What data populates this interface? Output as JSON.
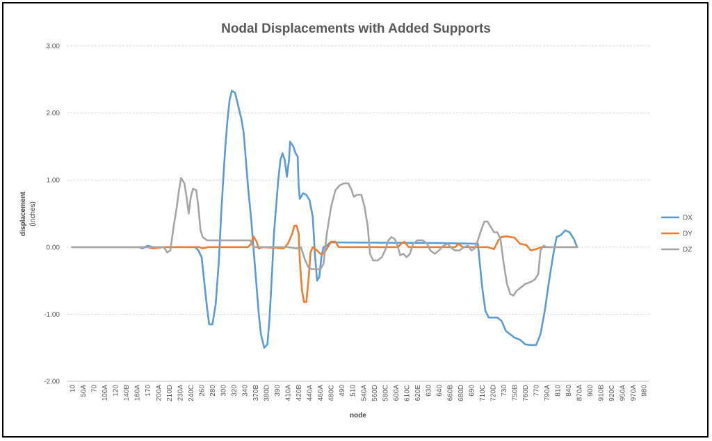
{
  "chart_data": {
    "type": "line",
    "title": "Nodal Displacements with Added Supports",
    "xlabel": "node",
    "ylabel": "displacement",
    "ylabel_unit": "(inches)",
    "ylim": [
      -2.0,
      3.0
    ],
    "yticks": [
      "3.00",
      "2.00",
      "1.00",
      "0.00",
      "-1.00",
      "-2.00"
    ],
    "grid": true,
    "legend_position": "right",
    "categories": [
      "10",
      "50A",
      "70",
      "100A",
      "120",
      "140B",
      "160A",
      "170",
      "200A",
      "210D",
      "230A",
      "240C",
      "260",
      "280",
      "300",
      "320",
      "340",
      "370B",
      "380D",
      "390",
      "410A",
      "420B",
      "440A",
      "460A",
      "480C",
      "490",
      "510",
      "540A",
      "560D",
      "580C",
      "600A",
      "610C",
      "620E",
      "630",
      "640",
      "660B",
      "680D",
      "690",
      "710C",
      "720D",
      "730",
      "750B",
      "760D",
      "770",
      "790A",
      "810",
      "840",
      "870A",
      "900",
      "910B",
      "920C",
      "950A",
      "970A",
      "980"
    ],
    "series": [
      {
        "name": "DX",
        "color": "#5B9BD5",
        "points": [
          [
            0,
            0
          ],
          [
            6.2,
            0
          ],
          [
            6.5,
            -0.02
          ],
          [
            7,
            0.02
          ],
          [
            7.5,
            0
          ],
          [
            11.4,
            0
          ],
          [
            11.7,
            -0.05
          ],
          [
            12,
            -0.15
          ],
          [
            12.3,
            -0.6
          ],
          [
            12.5,
            -0.9
          ],
          [
            12.7,
            -1.15
          ],
          [
            13,
            -1.15
          ],
          [
            13.3,
            -0.85
          ],
          [
            13.6,
            -0.2
          ],
          [
            13.8,
            0.45
          ],
          [
            14,
            1.0
          ],
          [
            14.2,
            1.5
          ],
          [
            14.4,
            1.9
          ],
          [
            14.6,
            2.2
          ],
          [
            14.8,
            2.33
          ],
          [
            15.1,
            2.3
          ],
          [
            15.4,
            2.1
          ],
          [
            15.7,
            1.9
          ],
          [
            15.9,
            1.7
          ],
          [
            16.1,
            1.3
          ],
          [
            16.3,
            0.9
          ],
          [
            16.6,
            0.4
          ],
          [
            16.9,
            -0.2
          ],
          [
            17.1,
            -0.6
          ],
          [
            17.3,
            -1.0
          ],
          [
            17.5,
            -1.3
          ],
          [
            17.8,
            -1.5
          ],
          [
            18.1,
            -1.45
          ],
          [
            18.3,
            -1.05
          ],
          [
            18.5,
            -0.45
          ],
          [
            18.7,
            0.2
          ],
          [
            18.9,
            0.6
          ],
          [
            19.1,
            1.0
          ],
          [
            19.3,
            1.3
          ],
          [
            19.5,
            1.4
          ],
          [
            19.7,
            1.3
          ],
          [
            19.9,
            1.05
          ],
          [
            20.1,
            1.3
          ],
          [
            20.2,
            1.57
          ],
          [
            20.5,
            1.5
          ],
          [
            20.7,
            1.4
          ],
          [
            20.9,
            1.35
          ],
          [
            21,
            0.9
          ],
          [
            21.1,
            0.72
          ],
          [
            21.4,
            0.8
          ],
          [
            21.7,
            0.78
          ],
          [
            22,
            0.7
          ],
          [
            22.3,
            0.45
          ],
          [
            22.5,
            -0.1
          ],
          [
            22.7,
            -0.5
          ],
          [
            22.9,
            -0.45
          ],
          [
            23.1,
            -0.15
          ],
          [
            23.3,
            0
          ],
          [
            23.6,
            0.02
          ],
          [
            23.9,
            0.07
          ],
          [
            34.5,
            0.06
          ],
          [
            37.6,
            0.05
          ],
          [
            38.0,
            -0.6
          ],
          [
            38.3,
            -0.95
          ],
          [
            38.6,
            -1.05
          ],
          [
            39.4,
            -1.05
          ],
          [
            39.8,
            -1.1
          ],
          [
            40.2,
            -1.25
          ],
          [
            40.6,
            -1.3
          ],
          [
            41.0,
            -1.35
          ],
          [
            41.5,
            -1.38
          ],
          [
            42.0,
            -1.45
          ],
          [
            42.5,
            -1.46
          ],
          [
            43.0,
            -1.46
          ],
          [
            43.4,
            -1.3
          ],
          [
            43.8,
            -0.95
          ],
          [
            44.2,
            -0.5
          ],
          [
            44.6,
            -0.1
          ],
          [
            44.9,
            0.15
          ],
          [
            45.3,
            0.18
          ],
          [
            45.7,
            0.25
          ],
          [
            46.1,
            0.22
          ],
          [
            46.5,
            0.12
          ],
          [
            46.8,
            0.0
          ]
        ]
      },
      {
        "name": "DY",
        "color": "#ED7D31",
        "points": [
          [
            0,
            0
          ],
          [
            7,
            0
          ],
          [
            7.5,
            -0.02
          ],
          [
            8.5,
            0
          ],
          [
            11.8,
            0
          ],
          [
            12.1,
            -0.02
          ],
          [
            12.6,
            0
          ],
          [
            16.3,
            0
          ],
          [
            16.6,
            0.05
          ],
          [
            16.8,
            0.16
          ],
          [
            17.1,
            0.08
          ],
          [
            17.3,
            -0.02
          ],
          [
            17.7,
            0
          ],
          [
            19.6,
            -0.02
          ],
          [
            20,
            0.05
          ],
          [
            20.4,
            0.2
          ],
          [
            20.6,
            0.32
          ],
          [
            20.8,
            0.32
          ],
          [
            21,
            0.2
          ],
          [
            21.1,
            -0.2
          ],
          [
            21.3,
            -0.65
          ],
          [
            21.5,
            -0.82
          ],
          [
            21.7,
            -0.82
          ],
          [
            21.9,
            -0.5
          ],
          [
            22.1,
            -0.08
          ],
          [
            22.3,
            0
          ],
          [
            22.7,
            -0.05
          ],
          [
            23,
            -0.1
          ],
          [
            23.3,
            -0.1
          ],
          [
            23.7,
            0
          ],
          [
            24,
            0.08
          ],
          [
            24.4,
            0.08
          ],
          [
            24.7,
            0
          ],
          [
            30.2,
            0
          ],
          [
            30.5,
            0.05
          ],
          [
            30.8,
            0.08
          ],
          [
            31.2,
            0
          ],
          [
            35.5,
            0
          ],
          [
            35.8,
            0.05
          ],
          [
            36.2,
            0
          ],
          [
            38.5,
            0
          ],
          [
            39.1,
            -0.03
          ],
          [
            39.5,
            0.1
          ],
          [
            39.8,
            0.15
          ],
          [
            40.3,
            0.16
          ],
          [
            41,
            0.14
          ],
          [
            41.5,
            0.05
          ],
          [
            42.1,
            0.03
          ],
          [
            42.5,
            -0.05
          ],
          [
            43,
            -0.03
          ],
          [
            43.5,
            0
          ],
          [
            46.8,
            0
          ]
        ]
      },
      {
        "name": "DZ",
        "color": "#A5A5A5",
        "points": [
          [
            0,
            0
          ],
          [
            8.5,
            0
          ],
          [
            8.8,
            -0.08
          ],
          [
            9.1,
            -0.05
          ],
          [
            9.4,
            0.3
          ],
          [
            9.7,
            0.6
          ],
          [
            9.9,
            0.85
          ],
          [
            10.1,
            1.03
          ],
          [
            10.4,
            0.95
          ],
          [
            10.6,
            0.75
          ],
          [
            10.8,
            0.5
          ],
          [
            11,
            0.75
          ],
          [
            11.2,
            0.87
          ],
          [
            11.5,
            0.85
          ],
          [
            11.7,
            0.6
          ],
          [
            11.9,
            0.25
          ],
          [
            12.1,
            0.15
          ],
          [
            12.5,
            0.1
          ],
          [
            13.5,
            0.1
          ],
          [
            16.5,
            0.1
          ],
          [
            16.8,
            0.0
          ],
          [
            17.3,
            0.0
          ],
          [
            20,
            0
          ],
          [
            20.8,
            -0.02
          ],
          [
            21.2,
            0
          ],
          [
            21.6,
            -0.2
          ],
          [
            21.9,
            -0.3
          ],
          [
            22.2,
            -0.33
          ],
          [
            23,
            -0.33
          ],
          [
            23.3,
            -0.25
          ],
          [
            23.6,
            0.2
          ],
          [
            24,
            0.6
          ],
          [
            24.4,
            0.85
          ],
          [
            24.8,
            0.92
          ],
          [
            25.2,
            0.95
          ],
          [
            25.6,
            0.95
          ],
          [
            25.9,
            0.85
          ],
          [
            26.1,
            0.75
          ],
          [
            26.4,
            0.78
          ],
          [
            26.8,
            0.78
          ],
          [
            27.1,
            0.6
          ],
          [
            27.4,
            0.3
          ],
          [
            27.6,
            -0.1
          ],
          [
            27.9,
            -0.2
          ],
          [
            28.3,
            -0.2
          ],
          [
            28.7,
            -0.15
          ],
          [
            29,
            -0.05
          ],
          [
            29.3,
            0.1
          ],
          [
            29.6,
            0.15
          ],
          [
            29.9,
            0.12
          ],
          [
            30.2,
            0
          ],
          [
            30.4,
            -0.12
          ],
          [
            30.7,
            -0.1
          ],
          [
            31.0,
            -0.15
          ],
          [
            31.3,
            -0.1
          ],
          [
            31.6,
            0.05
          ],
          [
            32,
            0.1
          ],
          [
            32.5,
            0.1
          ],
          [
            32.9,
            0.05
          ],
          [
            33.2,
            -0.05
          ],
          [
            33.6,
            -0.1
          ],
          [
            34,
            -0.05
          ],
          [
            34.4,
            0.02
          ],
          [
            34.8,
            0.05
          ],
          [
            35.2,
            -0.02
          ],
          [
            35.5,
            -0.05
          ],
          [
            35.9,
            -0.05
          ],
          [
            36.3,
            0
          ],
          [
            36.7,
            0.02
          ],
          [
            37.0,
            -0.05
          ],
          [
            37.3,
            -0.02
          ],
          [
            37.6,
            0.1
          ],
          [
            37.9,
            0.25
          ],
          [
            38.2,
            0.38
          ],
          [
            38.5,
            0.38
          ],
          [
            38.8,
            0.3
          ],
          [
            39.1,
            0.22
          ],
          [
            39.4,
            0.22
          ],
          [
            39.7,
            0.12
          ],
          [
            40,
            -0.25
          ],
          [
            40.3,
            -0.55
          ],
          [
            40.6,
            -0.7
          ],
          [
            40.9,
            -0.72
          ],
          [
            41.2,
            -0.65
          ],
          [
            41.6,
            -0.6
          ],
          [
            42,
            -0.55
          ],
          [
            42.5,
            -0.52
          ],
          [
            42.9,
            -0.48
          ],
          [
            43.2,
            -0.4
          ],
          [
            43.4,
            -0.05
          ],
          [
            43.7,
            0.02
          ],
          [
            44.0,
            0.0
          ],
          [
            46.8,
            0
          ]
        ]
      }
    ]
  }
}
